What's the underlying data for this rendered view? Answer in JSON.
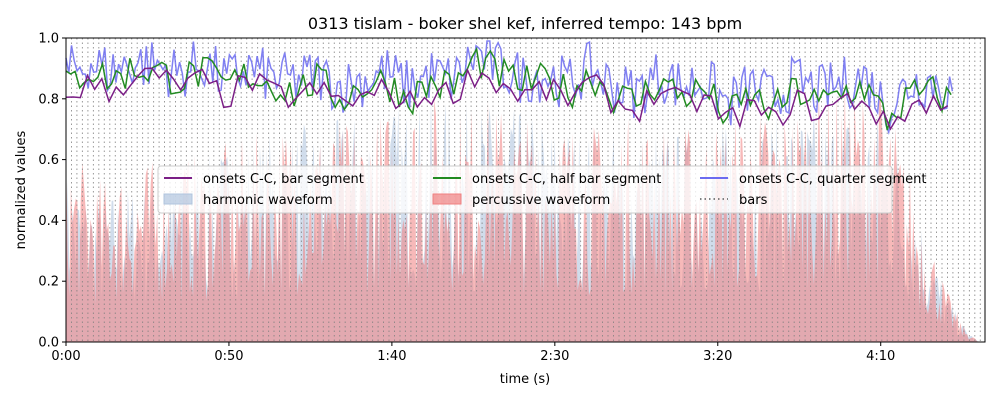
{
  "chart_data": {
    "type": "line",
    "title": "0313 tislam - boker shel kef, inferred tempo: 143 bpm",
    "xlabel": "time (s)",
    "ylabel": "normalized values",
    "xlim": [
      0,
      282
    ],
    "ylim": [
      0,
      1
    ],
    "x_ticks": [
      {
        "value": 0,
        "label": "0:00"
      },
      {
        "value": 50,
        "label": "0:50"
      },
      {
        "value": 100,
        "label": "1:40"
      },
      {
        "value": 150,
        "label": "2:30"
      },
      {
        "value": 200,
        "label": "3:20"
      },
      {
        "value": 250,
        "label": "4:10"
      }
    ],
    "y_ticks": [
      {
        "value": 0,
        "label": "0.0"
      },
      {
        "value": 0.2,
        "label": "0.2"
      },
      {
        "value": 0.4,
        "label": "0.4"
      },
      {
        "value": 0.6,
        "label": "0.6"
      },
      {
        "value": 0.8,
        "label": "0.8"
      },
      {
        "value": 1.0,
        "label": "1.0"
      }
    ],
    "bar_interval_s": 1.68,
    "legend": {
      "placement": "center",
      "ncol": 3,
      "entries": [
        {
          "label": "onsets C-C, bar segment",
          "kind": "line",
          "color": "#7b1f86"
        },
        {
          "label": "onsets C-C, half bar segment",
          "kind": "line",
          "color": "#228b22"
        },
        {
          "label": "onsets C-C, quarter segment",
          "kind": "line",
          "color": "#6b6bf0"
        },
        {
          "label": "harmonic waveform",
          "kind": "patch",
          "color": "#b0c4de"
        },
        {
          "label": "percussive waveform",
          "kind": "patch",
          "color": "#f08080"
        },
        {
          "label": "bars",
          "kind": "dotted",
          "color": "#808080"
        }
      ]
    },
    "series": [
      {
        "name": "onsets C-C, bar segment",
        "color": "#7b1f86",
        "x": [
          0,
          7,
          14,
          21,
          28,
          35,
          42,
          49,
          56,
          63,
          70,
          77,
          84,
          91,
          98,
          105,
          112,
          119,
          126,
          133,
          140,
          147,
          154,
          161,
          168,
          175,
          182,
          189,
          196,
          203,
          210,
          217,
          224,
          231,
          238,
          245,
          252,
          259,
          266,
          272
        ],
        "y": [
          0.81,
          0.85,
          0.82,
          0.88,
          0.87,
          0.84,
          0.86,
          0.8,
          0.86,
          0.82,
          0.8,
          0.83,
          0.79,
          0.8,
          0.83,
          0.78,
          0.82,
          0.82,
          0.89,
          0.85,
          0.81,
          0.83,
          0.8,
          0.85,
          0.79,
          0.76,
          0.83,
          0.78,
          0.8,
          0.72,
          0.78,
          0.72,
          0.8,
          0.75,
          0.79,
          0.8,
          0.7,
          0.78,
          0.79,
          0.76
        ]
      },
      {
        "name": "onsets C-C, half bar segment",
        "color": "#228b22",
        "x": [
          0,
          7,
          14,
          21,
          28,
          35,
          42,
          49,
          56,
          63,
          70,
          77,
          84,
          91,
          98,
          105,
          112,
          119,
          126,
          133,
          140,
          147,
          154,
          161,
          168,
          175,
          182,
          189,
          196,
          203,
          210,
          217,
          224,
          231,
          238,
          245,
          252,
          259,
          266,
          272
        ],
        "y": [
          0.84,
          0.9,
          0.86,
          0.9,
          0.89,
          0.86,
          0.89,
          0.84,
          0.88,
          0.85,
          0.82,
          0.86,
          0.8,
          0.84,
          0.86,
          0.8,
          0.85,
          0.84,
          0.93,
          0.88,
          0.85,
          0.86,
          0.82,
          0.88,
          0.81,
          0.79,
          0.86,
          0.81,
          0.83,
          0.74,
          0.81,
          0.76,
          0.83,
          0.78,
          0.82,
          0.84,
          0.73,
          0.81,
          0.82,
          0.79
        ]
      },
      {
        "name": "onsets C-C, quarter segment",
        "color": "#6b6bf0",
        "x": [
          0,
          7,
          14,
          21,
          28,
          35,
          42,
          49,
          56,
          63,
          70,
          77,
          84,
          91,
          98,
          105,
          112,
          119,
          126,
          133,
          140,
          147,
          154,
          161,
          168,
          175,
          182,
          189,
          196,
          203,
          210,
          217,
          224,
          231,
          238,
          245,
          252,
          259,
          266,
          272
        ],
        "y": [
          0.88,
          0.92,
          0.89,
          0.92,
          0.91,
          0.88,
          0.92,
          0.86,
          0.9,
          0.87,
          0.86,
          0.88,
          0.84,
          0.86,
          0.89,
          0.84,
          0.88,
          0.86,
          0.95,
          0.9,
          0.87,
          0.88,
          0.85,
          0.9,
          0.84,
          0.82,
          0.88,
          0.84,
          0.86,
          0.78,
          0.84,
          0.8,
          0.86,
          0.82,
          0.85,
          0.87,
          0.77,
          0.85,
          0.86,
          0.82
        ]
      }
    ],
    "areas": [
      {
        "name": "percussive waveform",
        "color": "#f08080",
        "x": [
          0,
          10,
          20,
          30,
          40,
          50,
          60,
          70,
          80,
          90,
          100,
          110,
          120,
          130,
          140,
          150,
          160,
          170,
          180,
          190,
          200,
          210,
          220,
          230,
          240,
          250,
          255,
          260,
          265,
          270,
          275,
          280
        ],
        "y": [
          0.55,
          0.45,
          0.5,
          0.5,
          0.52,
          0.55,
          0.58,
          0.62,
          0.6,
          0.62,
          0.65,
          0.7,
          0.65,
          0.68,
          0.62,
          0.64,
          0.6,
          0.62,
          0.62,
          0.6,
          0.62,
          0.64,
          0.66,
          0.7,
          0.72,
          0.72,
          0.6,
          0.45,
          0.3,
          0.15,
          0.05,
          0.0
        ]
      },
      {
        "name": "harmonic waveform",
        "color": "#b0c4de",
        "x": [
          0,
          10,
          20,
          30,
          40,
          50,
          60,
          70,
          80,
          90,
          100,
          110,
          120,
          130,
          140,
          150,
          160,
          170,
          180,
          190,
          200,
          210,
          220,
          230,
          240,
          250,
          255,
          260,
          265,
          270,
          275,
          280
        ],
        "y": [
          0.48,
          0.4,
          0.44,
          0.46,
          0.5,
          0.55,
          0.58,
          0.6,
          0.6,
          0.64,
          0.66,
          0.68,
          0.66,
          0.66,
          0.64,
          0.62,
          0.6,
          0.58,
          0.6,
          0.58,
          0.6,
          0.62,
          0.63,
          0.65,
          0.66,
          0.66,
          0.56,
          0.42,
          0.28,
          0.14,
          0.05,
          0.0
        ]
      }
    ]
  }
}
